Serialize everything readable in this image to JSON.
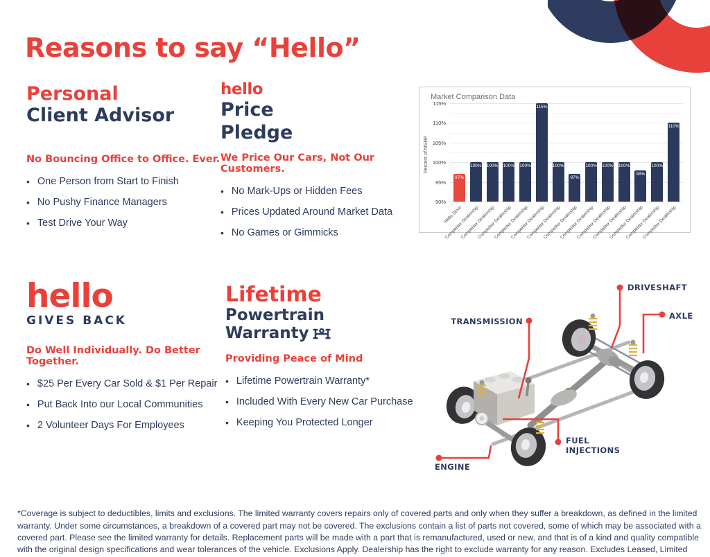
{
  "page": {
    "title": "Reasons to say “Hello”"
  },
  "colors": {
    "red": "#e9413a",
    "navy": "#2d3c5e",
    "bar_red": "#e8483e",
    "bar_navy": "#2b3a5c"
  },
  "sections": {
    "advisor": {
      "title_line1": "Personal",
      "title_line2": "Client Advisor",
      "subhead": "No Bouncing Office to Office. Ever.",
      "bullets": [
        "One Person from Start to Finish",
        "No Pushy Finance Managers",
        "Test Drive Your Way"
      ]
    },
    "price": {
      "logo": "hello",
      "title_line1": "Price",
      "title_line2": "Pledge",
      "subhead": "We Price Our Cars, Not Our Customers.",
      "bullets": [
        "No Mark-Ups or Hidden Fees",
        "Prices Updated Around Market Data",
        "No Games or Gimmicks"
      ]
    },
    "gives_back": {
      "logo": "hello",
      "subtitle": "GIVES BACK",
      "subhead": "Do Well Individually. Do Better Together.",
      "bullets": [
        "$25 Per Every Car Sold & $1 Per Repair",
        "Put Back Into our Local Communities",
        "2 Volunteer Days For Employees"
      ]
    },
    "warranty": {
      "title_line1": "Lifetime",
      "title_line2": "Powertrain",
      "title_line3": "Warranty",
      "subhead": "Providing Peace of Mind",
      "bullets": [
        "Lifetime Powertrain Warranty*",
        "Included With Every New Car Purchase",
        "Keeping You Protected Longer"
      ]
    }
  },
  "chart_data": {
    "type": "bar",
    "title": "Market Comparison Data",
    "ylabel": "Percent of MSRP",
    "ylim": [
      90,
      115
    ],
    "ytick_step": 5,
    "ytick_suffix": "%",
    "grid": true,
    "legend": "none",
    "categories": [
      "Hello Store",
      "Competitor Dealership",
      "Competitor Dealership",
      "Competitor Dealership",
      "Competitor Dealership",
      "Competitor Dealership",
      "Competitor Dealership",
      "Competitor Dealership",
      "Competitor Dealership",
      "Competitor Dealership",
      "Competitor Dealership",
      "Competitor Dealership",
      "Competitor Dealership",
      "Competitor Dealership"
    ],
    "values": [
      97,
      100,
      100,
      100,
      100,
      115,
      100,
      97,
      100,
      100,
      100,
      98,
      100,
      110
    ],
    "bar_labels": [
      "97%",
      "100%",
      "100%",
      "100%",
      "100%",
      "115%",
      "100%",
      "97%",
      "100%",
      "100%",
      "100%",
      "98%",
      "100%",
      "110%"
    ],
    "highlight_index": 0
  },
  "diagram": {
    "callouts": {
      "driveshaft": "DRIVESHAFT",
      "axle": "AXLE",
      "transmission": "TRANSMISSION",
      "fuel_injections": "FUEL INJECTIONS",
      "engine": "ENGINE"
    }
  },
  "footer": {
    "disclaimer": "*Coverage is subject to deductibles, limits and exclusions. The limited warranty covers repairs only of covered parts and only when they suffer a breakdown, as defined in the limited warranty. Under some circumstances, a breakdown of a covered part may not be covered. The exclusions contain a list of parts not covered, some of which may be associated with a covered part. Please see the limited warranty for details. Replacement parts will be made with a part that is remanufactured, used or new, and that is of a kind and quality compatible with the original design specifications and wear tolerances of the vehicle. Exclusions Apply. Dealership has the right to exclude warranty for any reason. Excludes Leased, Limited Production, Certified Pre-Owned, Hybrid, Plug-in Hybrid, or Electric vehicles."
  }
}
